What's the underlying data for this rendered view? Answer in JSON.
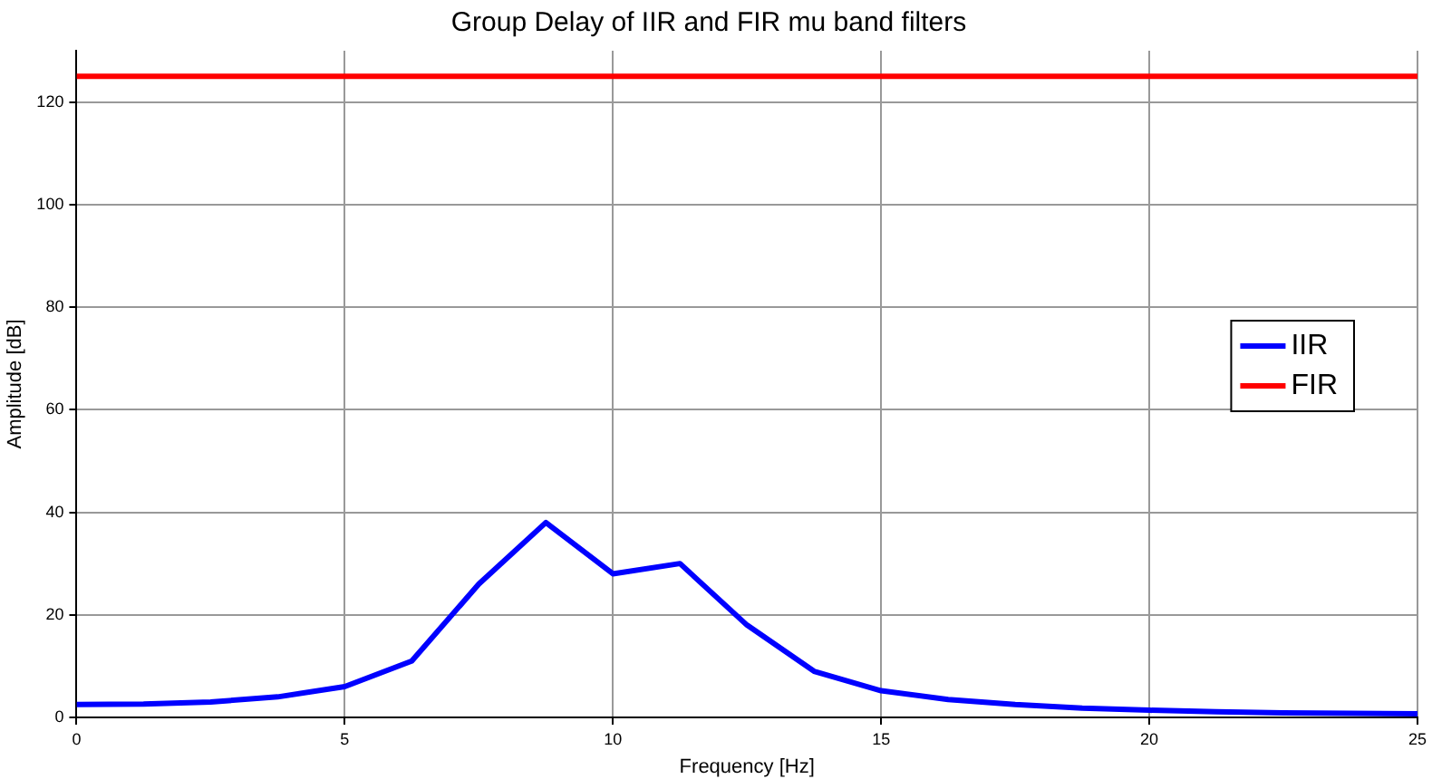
{
  "chart_data": {
    "type": "line",
    "title": "Group Delay of IIR and FIR mu band filters",
    "xlabel": "Frequency [Hz]",
    "ylabel": "Amplitude [dB]",
    "x": [
      0,
      1.25,
      2.5,
      3.75,
      5,
      6.25,
      7.5,
      8.75,
      10,
      11.25,
      12.5,
      13.75,
      15,
      16.25,
      17.5,
      18.75,
      20,
      21.25,
      22.5,
      23.75,
      25
    ],
    "series": [
      {
        "name": "IIR",
        "color": "#0000ff",
        "values": [
          2.5,
          2.6,
          3,
          4,
          6,
          11,
          26,
          38,
          28,
          30,
          18,
          9,
          5.2,
          3.5,
          2.5,
          1.8,
          1.4,
          1.1,
          0.9,
          0.8,
          0.7
        ]
      },
      {
        "name": "FIR",
        "color": "#ff0000",
        "values": [
          125,
          125,
          125,
          125,
          125,
          125,
          125,
          125,
          125,
          125,
          125,
          125,
          125,
          125,
          125,
          125,
          125,
          125,
          125,
          125,
          125
        ]
      }
    ],
    "xlim": [
      0,
      25
    ],
    "xticks": [
      0,
      5,
      10,
      15,
      20,
      25
    ],
    "ylim": [
      0,
      130
    ],
    "yticks": [
      0,
      20,
      40,
      60,
      80,
      100,
      120
    ],
    "grid": true,
    "legend": "right",
    "marker": "none",
    "line_style": "solid"
  }
}
